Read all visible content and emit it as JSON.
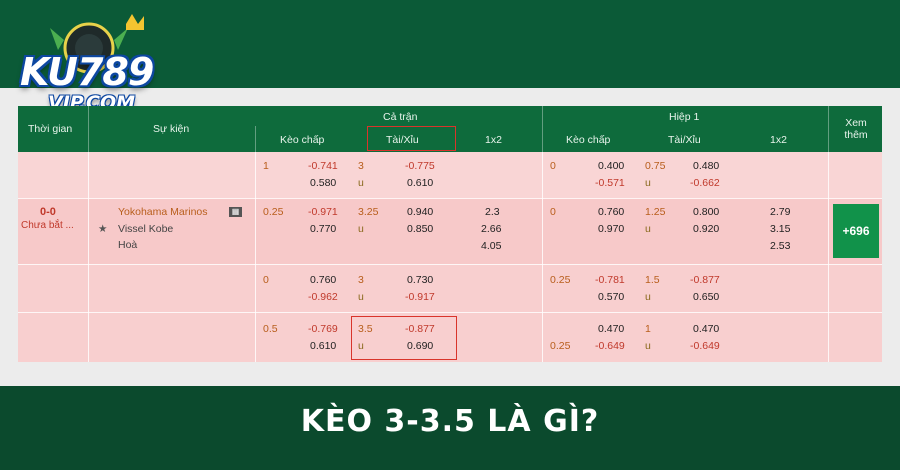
{
  "logo": {
    "main": "KU789",
    "sub": "VIP.COM"
  },
  "header": {
    "col_time": "Thời gian",
    "col_event": "Sự kiện",
    "group_full": "Cả trận",
    "group_half": "Hiệp 1",
    "more": "Xem thêm",
    "full_handicap": "Kèo chấp",
    "full_ou": "Tài/Xỉu",
    "full_1x2": "1x2",
    "half_handicap": "Kèo chấp",
    "half_ou": "Tài/Xỉu",
    "half_1x2": "1x2"
  },
  "rows": [
    {
      "hc_line": "1",
      "hc_top": "-0.741",
      "hc_bot": "0.580",
      "ou_line": "3",
      "ou_u": "",
      "ou_top": "-0.775",
      "ou_bot": "0.610",
      "h_hc_line": "0",
      "h_hc_top": "0.400",
      "h_hc_bot": "-0.571",
      "h_ou_line": "0.75",
      "h_ou_u": "u",
      "h_ou_top": "0.480",
      "h_ou_bot": "-0.662"
    }
  ],
  "match": {
    "score": "0-0",
    "status": "Chưa bắt ...",
    "home": "Yokohama Marinos",
    "away": "Vissel Kobe",
    "draw": "Hoà",
    "star": "★",
    "hc_line": "0.25",
    "hc_top": "-0.971",
    "hc_bot": "0.770",
    "ou_line": "3.25",
    "ou_u": "u",
    "ou_top": "0.940",
    "ou_bot": "0.850",
    "x12_1": "2.3",
    "x12_x": "2.66",
    "x12_2": "4.05",
    "h_hc_line": "0",
    "h_hc_top": "0.760",
    "h_hc_bot": "0.970",
    "h_ou_line": "1.25",
    "h_ou_u": "u",
    "h_ou_top": "0.800",
    "h_ou_bot": "0.920",
    "h_x12_1": "2.79",
    "h_x12_x": "3.15",
    "h_x12_2": "2.53",
    "more_count": "+696"
  },
  "row1_ou_u": "u",
  "row3": {
    "hc_line": "0",
    "hc_top": "0.760",
    "hc_bot": "-0.962",
    "ou_line": "3",
    "ou_u": "u",
    "ou_top": "0.730",
    "ou_bot": "-0.917",
    "h_hc_line": "0.25",
    "h_hc_top": "-0.781",
    "h_hc_bot": "0.570",
    "h_ou_line": "1.5",
    "h_ou_u": "u",
    "h_ou_top": "-0.877",
    "h_ou_bot": "0.650"
  },
  "row4": {
    "hc_line": "0.5",
    "hc_top": "-0.769",
    "hc_bot": "0.610",
    "ou_line": "3.5",
    "ou_u": "u",
    "ou_top": "-0.877",
    "ou_bot": "0.690",
    "h_hc_line": "0.25",
    "h_hc_top": "0.470",
    "h_hc_bot": "-0.649",
    "h_ou_line": "1",
    "h_ou_u": "u",
    "h_ou_top": "0.470",
    "h_ou_bot": "-0.649"
  },
  "caption": "KÈO 3-3.5 LÀ GÌ?",
  "colors": {
    "header": "#0e6b3c",
    "row": "#f8cfcf",
    "highlight": "#d9342b",
    "button": "#11924a"
  }
}
